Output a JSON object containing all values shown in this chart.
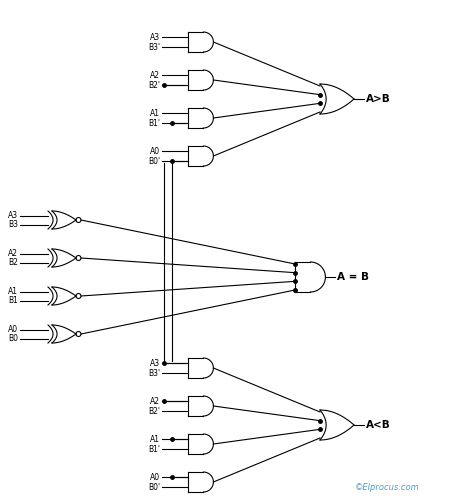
{
  "background_color": "#ffffff",
  "line_color": "#000000",
  "line_width": 0.8,
  "watermark": "©Elprocus.com",
  "watermark_color": "#4a9fc8",
  "output_labels": [
    "A>B",
    "A = B",
    "A<B"
  ],
  "top_and_labels": [
    [
      "A3",
      "B3'"
    ],
    [
      "A2",
      "B2'"
    ],
    [
      "A1",
      "B1'"
    ],
    [
      "A0",
      "B0'"
    ]
  ],
  "mid_xnor_labels": [
    [
      "A3",
      "B3"
    ],
    [
      "A2",
      "B2"
    ],
    [
      "A1",
      "B1"
    ],
    [
      "A0",
      "B0"
    ]
  ],
  "bot_and_labels": [
    [
      "A3",
      "B3'"
    ],
    [
      "A2",
      "B2'"
    ],
    [
      "A1",
      "B1'"
    ],
    [
      "A0",
      "B0'"
    ]
  ],
  "font_size": 5.5,
  "label_font_size": 7.5
}
